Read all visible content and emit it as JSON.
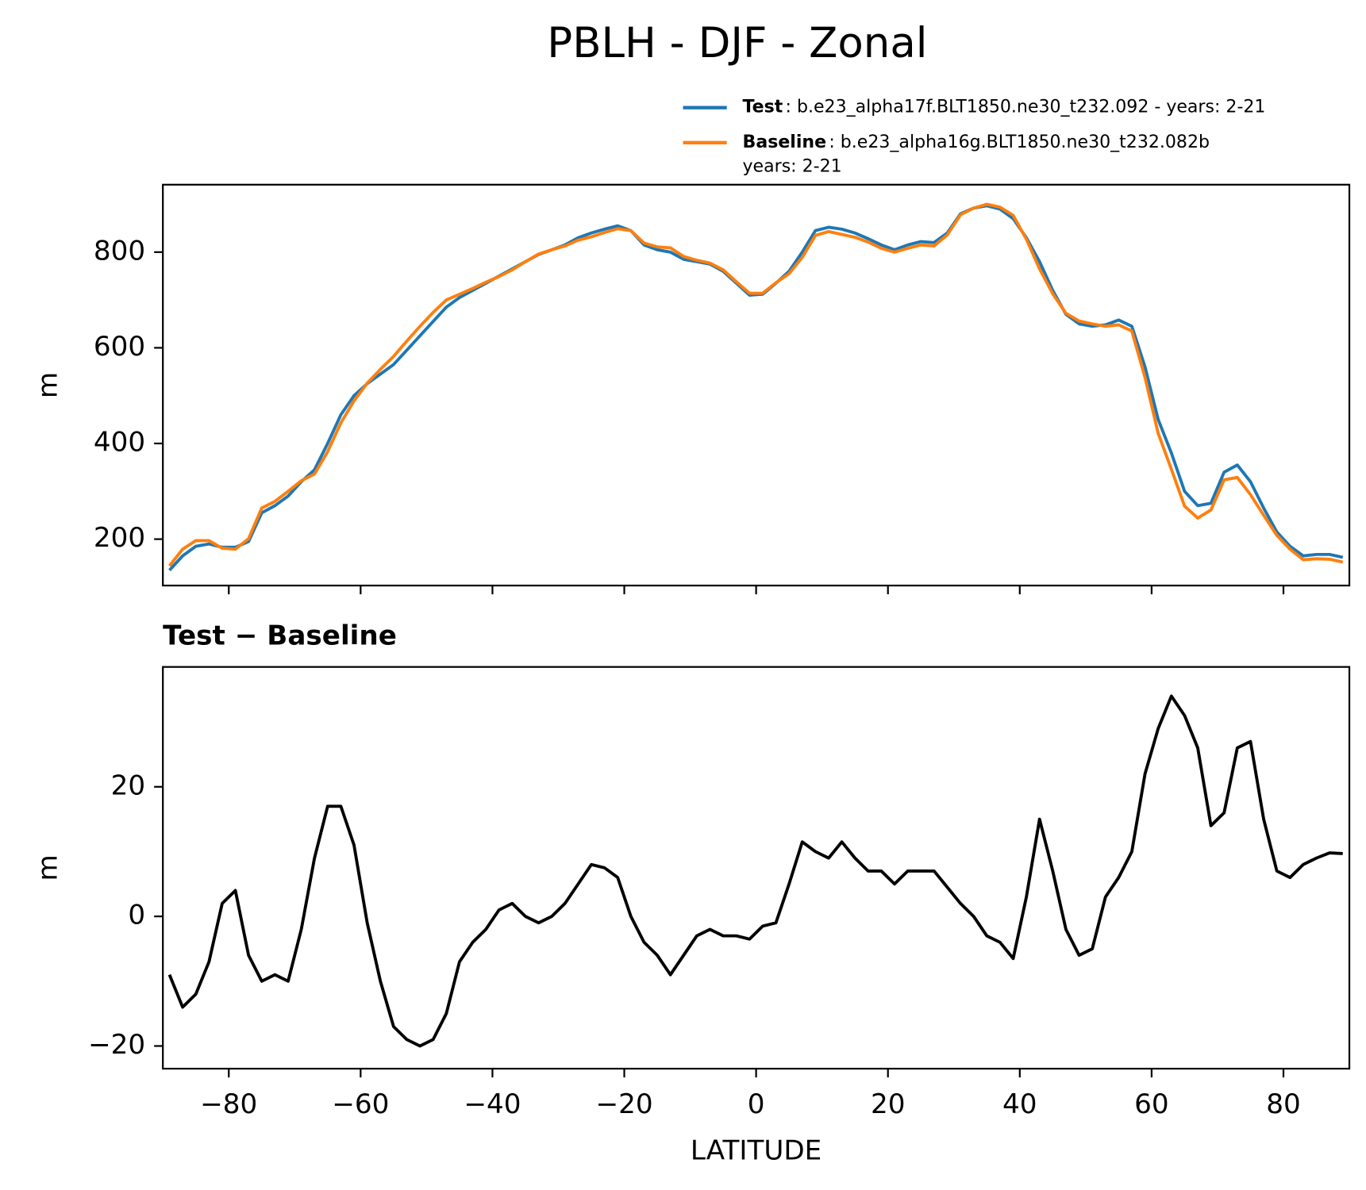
{
  "chart_data": [
    {
      "type": "line",
      "title": "PBLH - DJF - Zonal",
      "ylabel": "m",
      "x": [
        -89,
        -87,
        -85,
        -83,
        -81,
        -79,
        -77,
        -75,
        -73,
        -71,
        -69,
        -67,
        -65,
        -63,
        -61,
        -59,
        -57,
        -55,
        -53,
        -51,
        -49,
        -47,
        -45,
        -43,
        -41,
        -39,
        -37,
        -35,
        -33,
        -31,
        -29,
        -27,
        -25,
        -23,
        -21,
        -19,
        -17,
        -15,
        -13,
        -11,
        -9,
        -7,
        -5,
        -3,
        -1,
        1,
        3,
        5,
        7,
        9,
        11,
        13,
        15,
        17,
        19,
        21,
        23,
        25,
        27,
        29,
        31,
        33,
        35,
        37,
        39,
        41,
        43,
        45,
        47,
        49,
        51,
        53,
        55,
        57,
        59,
        61,
        63,
        65,
        67,
        69,
        71,
        73,
        75,
        77,
        79,
        81,
        83,
        85,
        87,
        89
      ],
      "series": [
        {
          "name": "Test",
          "description": [
            ": b.e23_alpha17f.BLT1850.ne30_t232.092 - years: 2-21"
          ],
          "color": "#1f77b4",
          "values": [
            135,
            165,
            185,
            190,
            183,
            183,
            195,
            255,
            270,
            290,
            320,
            345,
            400,
            460,
            500,
            525,
            545,
            565,
            595,
            625,
            655,
            685,
            705,
            720,
            735,
            750,
            765,
            780,
            795,
            805,
            815,
            830,
            840,
            848,
            855,
            845,
            815,
            805,
            800,
            785,
            780,
            775,
            760,
            735,
            710,
            712,
            735,
            760,
            800,
            845,
            852,
            848,
            840,
            828,
            815,
            805,
            815,
            822,
            820,
            840,
            880,
            892,
            897,
            890,
            870,
            830,
            780,
            720,
            670,
            650,
            645,
            648,
            658,
            645,
            560,
            450,
            380,
            300,
            270,
            275,
            340,
            355,
            320,
            265,
            215,
            185,
            165,
            168,
            168,
            162
          ]
        },
        {
          "name": "Baseline",
          "description": [
            ": b.e23_alpha16g.BLT1850.ne30_t232.082b",
            "years: 2-21"
          ],
          "color": "#ff7f0e",
          "values": [
            144,
            179,
            197,
            197,
            181,
            179,
            201,
            265,
            279,
            300,
            322,
            336,
            383,
            443,
            489,
            526,
            555,
            582,
            614,
            645,
            674,
            700,
            712,
            724,
            737,
            749,
            763,
            780,
            796,
            805,
            813,
            825,
            832,
            841,
            849,
            845,
            819,
            811,
            809,
            791,
            783,
            777,
            763,
            738,
            714,
            714,
            736,
            755,
            789,
            835,
            843,
            837,
            831,
            821,
            808,
            800,
            808,
            815,
            813,
            836,
            878,
            892,
            900,
            894,
            877,
            827,
            765,
            713,
            672,
            656,
            650,
            645,
            648,
            635,
            538,
            421,
            346,
            269,
            244,
            261,
            324,
            329,
            293,
            250,
            208,
            179,
            157,
            159,
            158,
            152
          ]
        }
      ],
      "xlim": [
        -90,
        90
      ],
      "xticks": [
        -80,
        -60,
        -40,
        -20,
        0,
        20,
        40,
        60,
        80
      ],
      "ylim": [
        103,
        941
      ],
      "yticks": [
        200,
        400,
        600,
        800
      ]
    },
    {
      "type": "line",
      "subtitle": "Test − Baseline",
      "ylabel": "m",
      "xlabel": "LATITUDE",
      "x": [
        -89,
        -87,
        -85,
        -83,
        -81,
        -79,
        -77,
        -75,
        -73,
        -71,
        -69,
        -67,
        -65,
        -63,
        -61,
        -59,
        -57,
        -55,
        -53,
        -51,
        -49,
        -47,
        -45,
        -43,
        -41,
        -39,
        -37,
        -35,
        -33,
        -31,
        -29,
        -27,
        -25,
        -23,
        -21,
        -19,
        -17,
        -15,
        -13,
        -11,
        -9,
        -7,
        -5,
        -3,
        -1,
        1,
        3,
        5,
        7,
        9,
        11,
        13,
        15,
        17,
        19,
        21,
        23,
        25,
        27,
        29,
        31,
        33,
        35,
        37,
        39,
        41,
        43,
        45,
        47,
        49,
        51,
        53,
        55,
        57,
        59,
        61,
        63,
        65,
        67,
        69,
        71,
        73,
        75,
        77,
        79,
        81,
        83,
        85,
        87,
        89
      ],
      "series": [
        {
          "color": "#000000",
          "values": [
            -9,
            -14,
            -12,
            -7,
            2,
            4,
            -6,
            -10,
            -9,
            -10,
            -2,
            9,
            17,
            17,
            11,
            -1,
            -10,
            -17,
            -19,
            -20,
            -19,
            -15,
            -7,
            -4,
            -2,
            1,
            2,
            0,
            -1,
            0,
            2,
            5,
            8,
            7.5,
            6,
            0,
            -4,
            -6,
            -9,
            -6,
            -3,
            -2,
            -3,
            -3,
            -3.5,
            -1.5,
            -1,
            5,
            11.5,
            10,
            9,
            11.5,
            9,
            7,
            7,
            5,
            7,
            7,
            7,
            4.5,
            2,
            0,
            -3,
            -4,
            -6.5,
            3,
            15,
            7,
            -2,
            -6,
            -5,
            3,
            6,
            10,
            22,
            29,
            34,
            31,
            26,
            14,
            16,
            26,
            27,
            15,
            7,
            6,
            8,
            9,
            9.8,
            9.7
          ]
        }
      ],
      "xlim": [
        -90,
        90
      ],
      "xticks": [
        {
          "value": -80,
          "label": "−80"
        },
        {
          "value": -60,
          "label": "−60"
        },
        {
          "value": -40,
          "label": "−40"
        },
        {
          "value": -20,
          "label": "−20"
        },
        0,
        20,
        40,
        60,
        80
      ],
      "ylim": [
        -23.5,
        38.5
      ],
      "yticks": [
        {
          "value": -20,
          "label": "−20"
        },
        0,
        20
      ]
    }
  ]
}
